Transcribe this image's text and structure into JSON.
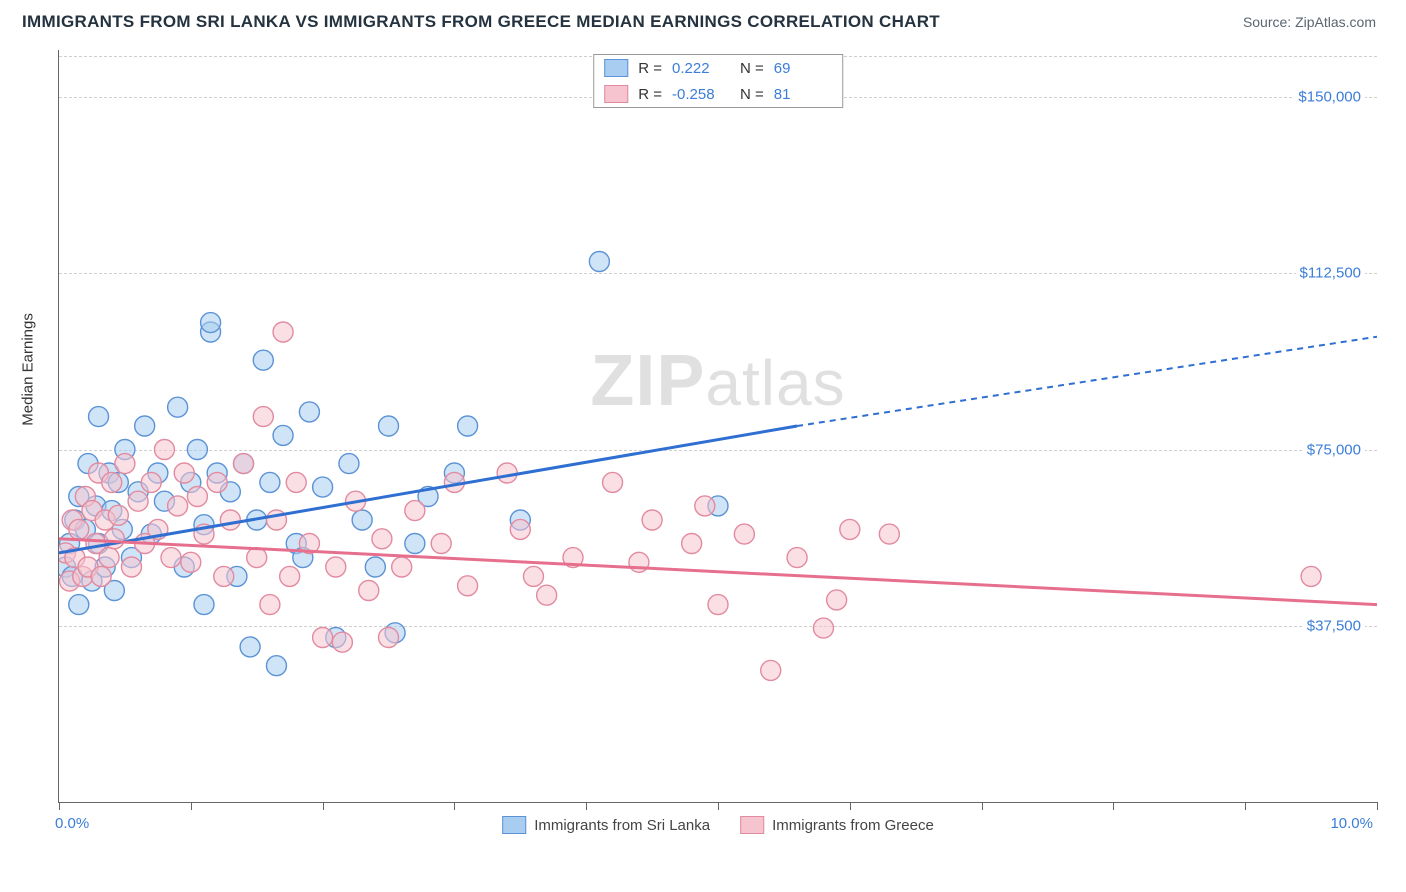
{
  "title": "IMMIGRANTS FROM SRI LANKA VS IMMIGRANTS FROM GREECE MEDIAN EARNINGS CORRELATION CHART",
  "source_label": "Source: ZipAtlas.com",
  "ylabel": "Median Earnings",
  "watermark": "ZIPatlas",
  "chart": {
    "type": "scatter-with-trendlines",
    "xlim": [
      0,
      10
    ],
    "ylim": [
      0,
      160000
    ],
    "ygrid_values": [
      37500,
      75000,
      112500,
      150000
    ],
    "ygrid_labels": [
      "$37,500",
      "$75,000",
      "$112,500",
      "$150,000"
    ],
    "xtick_positions": [
      0,
      1,
      2,
      3,
      4,
      5,
      6,
      7,
      8,
      9,
      10
    ],
    "x_start_label": "0.0%",
    "x_end_label": "10.0%",
    "background_color": "#ffffff",
    "grid_color": "#cfcfcf",
    "marker_radius": 10,
    "marker_opacity": 0.55,
    "series": [
      {
        "name": "Immigrants from Sri Lanka",
        "color_fill": "#a9cdf0",
        "color_stroke": "#5b93d6",
        "line_color": "#2e6fd1",
        "r_value": "0.222",
        "n_value": "69",
        "trend": {
          "x1": 0,
          "y1": 53000,
          "x2": 5.6,
          "y2": 80000,
          "x1d": 5.6,
          "y1d": 80000,
          "x2d": 10,
          "y2d": 99000
        },
        "points": [
          [
            0.05,
            50000
          ],
          [
            0.08,
            55000
          ],
          [
            0.1,
            48000
          ],
          [
            0.12,
            60000
          ],
          [
            0.15,
            42000
          ],
          [
            0.15,
            65000
          ],
          [
            0.2,
            58000
          ],
          [
            0.22,
            72000
          ],
          [
            0.25,
            47000
          ],
          [
            0.28,
            63000
          ],
          [
            0.3,
            55000
          ],
          [
            0.3,
            82000
          ],
          [
            0.35,
            50000
          ],
          [
            0.38,
            70000
          ],
          [
            0.4,
            62000
          ],
          [
            0.42,
            45000
          ],
          [
            0.45,
            68000
          ],
          [
            0.48,
            58000
          ],
          [
            0.5,
            75000
          ],
          [
            0.55,
            52000
          ],
          [
            0.6,
            66000
          ],
          [
            0.65,
            80000
          ],
          [
            0.7,
            57000
          ],
          [
            0.75,
            70000
          ],
          [
            0.8,
            64000
          ],
          [
            0.9,
            84000
          ],
          [
            0.95,
            50000
          ],
          [
            1.0,
            68000
          ],
          [
            1.05,
            75000
          ],
          [
            1.1,
            42000
          ],
          [
            1.15,
            100000
          ],
          [
            1.2,
            70000
          ],
          [
            1.1,
            59000
          ],
          [
            1.15,
            102000
          ],
          [
            1.3,
            66000
          ],
          [
            1.35,
            48000
          ],
          [
            1.4,
            72000
          ],
          [
            1.45,
            33000
          ],
          [
            1.5,
            60000
          ],
          [
            1.55,
            94000
          ],
          [
            1.6,
            68000
          ],
          [
            1.65,
            29000
          ],
          [
            1.7,
            78000
          ],
          [
            1.8,
            55000
          ],
          [
            1.9,
            83000
          ],
          [
            1.85,
            52000
          ],
          [
            2.0,
            67000
          ],
          [
            2.1,
            35000
          ],
          [
            2.2,
            72000
          ],
          [
            2.3,
            60000
          ],
          [
            2.4,
            50000
          ],
          [
            2.5,
            80000
          ],
          [
            2.55,
            36000
          ],
          [
            2.7,
            55000
          ],
          [
            2.8,
            65000
          ],
          [
            3.0,
            70000
          ],
          [
            3.1,
            80000
          ],
          [
            3.5,
            60000
          ],
          [
            4.1,
            115000
          ],
          [
            5.0,
            63000
          ]
        ]
      },
      {
        "name": "Immigrants from Greece",
        "color_fill": "#f5c4cf",
        "color_stroke": "#e28ba0",
        "line_color": "#e76f8e",
        "r_value": "-0.258",
        "n_value": "81",
        "trend": {
          "x1": 0,
          "y1": 56000,
          "x2": 10,
          "y2": 42000,
          "x1d": 0,
          "y1d": 0,
          "x2d": 0,
          "y2d": 0
        },
        "points": [
          [
            0.05,
            53000
          ],
          [
            0.08,
            47000
          ],
          [
            0.1,
            60000
          ],
          [
            0.12,
            52000
          ],
          [
            0.15,
            58000
          ],
          [
            0.18,
            48000
          ],
          [
            0.2,
            65000
          ],
          [
            0.22,
            50000
          ],
          [
            0.25,
            62000
          ],
          [
            0.28,
            55000
          ],
          [
            0.3,
            70000
          ],
          [
            0.32,
            48000
          ],
          [
            0.35,
            60000
          ],
          [
            0.38,
            52000
          ],
          [
            0.4,
            68000
          ],
          [
            0.42,
            56000
          ],
          [
            0.45,
            61000
          ],
          [
            0.5,
            72000
          ],
          [
            0.55,
            50000
          ],
          [
            0.6,
            64000
          ],
          [
            0.65,
            55000
          ],
          [
            0.7,
            68000
          ],
          [
            0.75,
            58000
          ],
          [
            0.8,
            75000
          ],
          [
            0.85,
            52000
          ],
          [
            0.9,
            63000
          ],
          [
            0.95,
            70000
          ],
          [
            1.0,
            51000
          ],
          [
            1.05,
            65000
          ],
          [
            1.1,
            57000
          ],
          [
            1.2,
            68000
          ],
          [
            1.25,
            48000
          ],
          [
            1.3,
            60000
          ],
          [
            1.4,
            72000
          ],
          [
            1.5,
            52000
          ],
          [
            1.55,
            82000
          ],
          [
            1.6,
            42000
          ],
          [
            1.65,
            60000
          ],
          [
            1.7,
            100000
          ],
          [
            1.75,
            48000
          ],
          [
            1.8,
            68000
          ],
          [
            1.9,
            55000
          ],
          [
            2.0,
            35000
          ],
          [
            2.1,
            50000
          ],
          [
            2.15,
            34000
          ],
          [
            2.25,
            64000
          ],
          [
            2.35,
            45000
          ],
          [
            2.45,
            56000
          ],
          [
            2.5,
            35000
          ],
          [
            2.6,
            50000
          ],
          [
            2.7,
            62000
          ],
          [
            2.9,
            55000
          ],
          [
            3.0,
            68000
          ],
          [
            3.1,
            46000
          ],
          [
            3.4,
            70000
          ],
          [
            3.5,
            58000
          ],
          [
            3.6,
            48000
          ],
          [
            3.7,
            44000
          ],
          [
            3.9,
            52000
          ],
          [
            4.2,
            68000
          ],
          [
            4.4,
            51000
          ],
          [
            4.5,
            60000
          ],
          [
            4.8,
            55000
          ],
          [
            4.9,
            63000
          ],
          [
            5.0,
            42000
          ],
          [
            5.2,
            57000
          ],
          [
            5.4,
            28000
          ],
          [
            5.6,
            52000
          ],
          [
            5.8,
            37000
          ],
          [
            5.9,
            43000
          ],
          [
            6.0,
            58000
          ],
          [
            6.3,
            57000
          ],
          [
            9.5,
            48000
          ]
        ]
      }
    ]
  },
  "legend_bottom": [
    {
      "swatch_fill": "#a9cdf0",
      "swatch_stroke": "#5b93d6",
      "label": "Immigrants from Sri Lanka"
    },
    {
      "swatch_fill": "#f5c4cf",
      "swatch_stroke": "#e28ba0",
      "label": "Immigrants from Greece"
    }
  ]
}
